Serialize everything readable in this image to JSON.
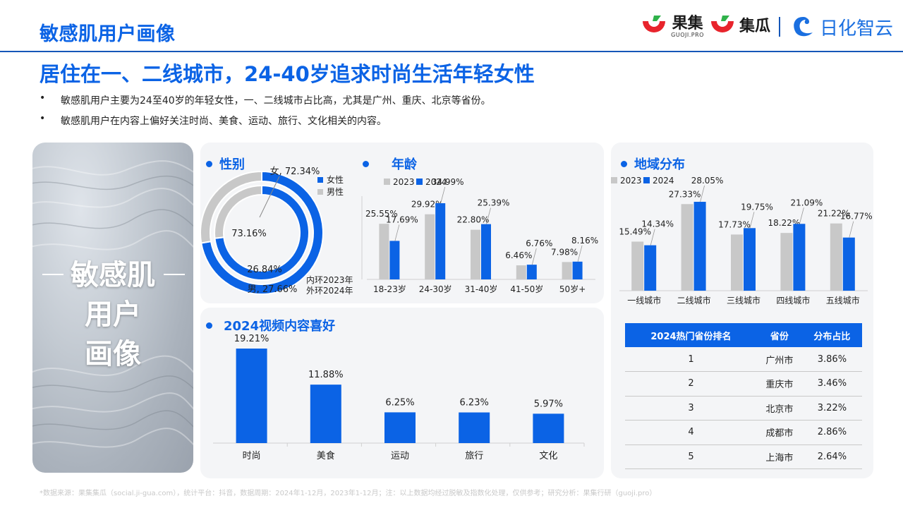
{
  "page": {
    "title": "敏感肌用户画像",
    "subtitle": "居住在一、二线城市，24-40岁追求时尚生活年轻女性",
    "bullets": [
      "敏感肌用户主要为24至40岁的年轻女性，一、二线城市占比高，尤其是广州、重庆、北京等省份。",
      "敏感肌用户在内容上偏好关注时尚、美食、运动、旅行、文化相关的内容。"
    ],
    "footnote": "*数据来源：果集集瓜（social.ji-gua.com），统计平台：抖音，数据周期：2024年1-12月，2023年1-12月；注：以上数据均经过脱敏及指数化处理，仅供参考；研究分析：果集行研（guoji.pro）"
  },
  "logos": {
    "guoji": "果集",
    "guoji_sub": "GUOJI.PRO",
    "jigua": "集瓜",
    "rihua": "日化智云",
    "brand_red": "#e8242c",
    "brand_green": "#2fb24a",
    "brand_blue": "#1a6fe0"
  },
  "hero": {
    "title_lines": [
      "敏感肌",
      "用户",
      "画像"
    ]
  },
  "colors": {
    "blue": "#0b63e5",
    "gray": "#c8c8c8",
    "panel": "#f4f5f7"
  },
  "gender_panel": {
    "title": "性别",
    "legend": [
      "女性",
      "男性"
    ],
    "ring_note_inner": "内环2023年",
    "ring_note_outer": "外环2024年"
  },
  "age_panel": {
    "title": "年龄",
    "legend": [
      "2023",
      "2024"
    ]
  },
  "region_panel": {
    "title": "地域分布",
    "legend": [
      "2023",
      "2024"
    ]
  },
  "video_panel": {
    "title": "2024视频内容喜好"
  },
  "province_table": {
    "headers": [
      "2024热门省份排名",
      "省份",
      "分布占比"
    ],
    "rows": [
      [
        "1",
        "广州市",
        "3.86%"
      ],
      [
        "2",
        "重庆市",
        "3.46%"
      ],
      [
        "3",
        "北京市",
        "3.22%"
      ],
      [
        "4",
        "成都市",
        "2.86%"
      ],
      [
        "5",
        "上海市",
        "2.64%"
      ]
    ]
  },
  "chart_data": [
    {
      "type": "pie",
      "title": "性别",
      "rings": [
        {
          "name": "内环2023年",
          "slices": [
            {
              "label": "女性",
              "value": 73.16,
              "text": "73.16%"
            },
            {
              "label": "男性",
              "value": 26.84,
              "text": "26.84%"
            }
          ]
        },
        {
          "name": "外环2024年",
          "slices": [
            {
              "label": "女性",
              "value": 72.34,
              "text": "女, 72.34%"
            },
            {
              "label": "男性",
              "value": 27.66,
              "text": "男, 27.66%"
            }
          ]
        }
      ]
    },
    {
      "type": "bar",
      "title": "年龄",
      "categories": [
        "18-23岁",
        "24-30岁",
        "31-40岁",
        "41-50岁",
        "50岁+"
      ],
      "series": [
        {
          "name": "2023",
          "values": [
            25.55,
            29.92,
            22.8,
            6.46,
            7.98
          ],
          "labels": [
            "25.55%",
            "29.92%",
            "22.80%",
            "6.46%",
            "7.98%"
          ]
        },
        {
          "name": "2024",
          "values": [
            17.69,
            34.99,
            25.39,
            6.76,
            8.16
          ],
          "labels": [
            "17.69%",
            "34.99%",
            "25.39%",
            "6.76%",
            "8.16%"
          ]
        }
      ]
    },
    {
      "type": "bar",
      "title": "地域分布",
      "categories": [
        "一线城市",
        "二线城市",
        "三线城市",
        "四线城市",
        "五线城市"
      ],
      "series": [
        {
          "name": "2023",
          "values": [
            15.49,
            27.33,
            17.73,
            18.22,
            21.22
          ],
          "labels": [
            "15.49%",
            "27.33%",
            "17.73%",
            "18.22%",
            "21.22%"
          ]
        },
        {
          "name": "2024",
          "values": [
            14.34,
            28.05,
            19.75,
            21.09,
            16.77
          ],
          "labels": [
            "14.34%",
            "28.05%",
            "19.75%",
            "21.09%",
            "16.77%"
          ]
        }
      ]
    },
    {
      "type": "bar",
      "title": "2024视频内容喜好",
      "categories": [
        "时尚",
        "美食",
        "运动",
        "旅行",
        "文化"
      ],
      "values": [
        19.21,
        11.88,
        6.25,
        6.23,
        5.97
      ],
      "labels": [
        "19.21%",
        "11.88%",
        "6.25%",
        "6.23%",
        "5.97%"
      ]
    }
  ]
}
